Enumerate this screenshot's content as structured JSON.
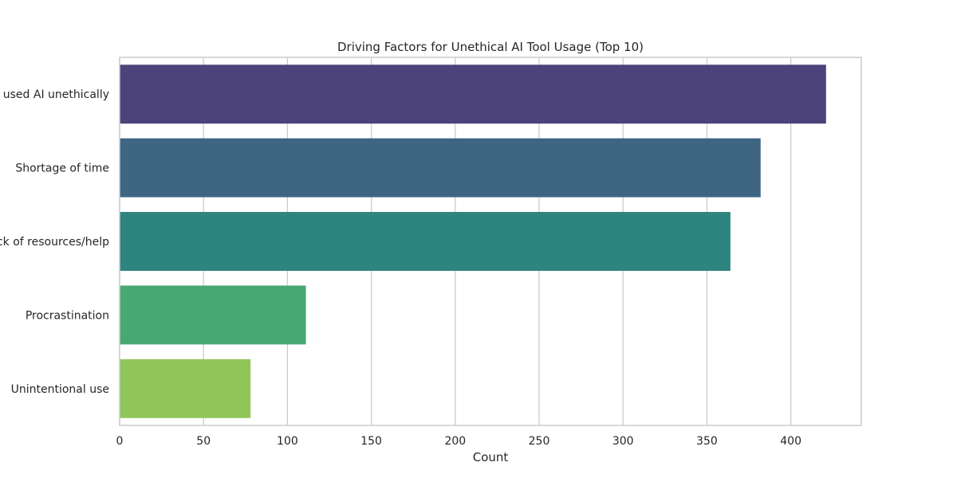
{
  "chart_data": {
    "type": "bar",
    "orientation": "horizontal",
    "title": "Driving Factors for Unethical AI Tool Usage (Top 10)",
    "xlabel": "Count",
    "ylabel": "",
    "xlim": [
      0,
      442
    ],
    "xticks": [
      0,
      50,
      100,
      150,
      200,
      250,
      300,
      350,
      400
    ],
    "grid": true,
    "categories": [
      "Never used AI unethically",
      "Shortage of time",
      "Lack of resources/help",
      "Procrastination",
      "Unintentional use"
    ],
    "values": [
      421,
      382,
      364,
      111,
      78
    ],
    "colors": [
      "#4c437b",
      "#3e6682",
      "#2e847e",
      "#48a874",
      "#90c55a"
    ]
  }
}
